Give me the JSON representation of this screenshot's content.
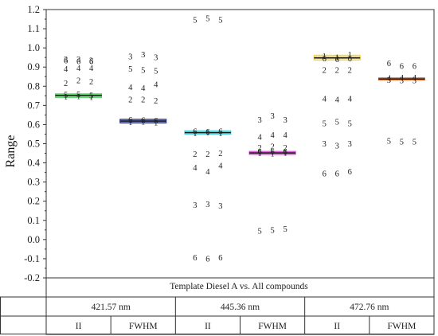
{
  "chart_data": {
    "type": "scatter",
    "ylabel": "Range",
    "ylim": [
      -0.2,
      1.2
    ],
    "yticks": [
      "1.2",
      "1.1",
      "1.0",
      "0.9",
      "0.8",
      "0.7",
      "0.6",
      "0.5",
      "0.4",
      "0.3",
      "0.2",
      "0.1",
      "0.0",
      "-0.1",
      "-0.2"
    ],
    "grid": false,
    "table": {
      "title": "Template Diesel A vs. All compounds",
      "wavelengths": [
        "421.57 nm",
        "445.36 nm",
        "472.76 nm"
      ],
      "measures": [
        "II",
        "FWHM",
        "II",
        "FWHM",
        "II",
        "FWHM"
      ]
    },
    "groups": [
      {
        "wavelength": "421.57 nm",
        "measure": "II",
        "bar": {
          "mean": 0.752,
          "low": 0.742,
          "high": 0.76,
          "color": "#2ecc40"
        },
        "points": [
          {
            "label": "6",
            "y": 0.935
          },
          {
            "label": "6",
            "y": 0.93
          },
          {
            "label": "6",
            "y": 0.93
          },
          {
            "label": "3",
            "y": 0.94
          },
          {
            "label": "3",
            "y": 0.94
          },
          {
            "label": "3",
            "y": 0.935
          },
          {
            "label": "4",
            "y": 0.89
          },
          {
            "label": "4",
            "y": 0.895
          },
          {
            "label": "4",
            "y": 0.895
          },
          {
            "label": "2",
            "y": 0.815
          },
          {
            "label": "2",
            "y": 0.83
          },
          {
            "label": "2",
            "y": 0.825
          },
          {
            "label": "5",
            "y": 0.755
          },
          {
            "label": "5",
            "y": 0.758
          },
          {
            "label": "5",
            "y": 0.752
          },
          {
            "label": "1",
            "y": 0.745
          },
          {
            "label": "1",
            "y": 0.748
          },
          {
            "label": "1",
            "y": 0.742
          }
        ]
      },
      {
        "wavelength": "421.57 nm",
        "measure": "FWHM",
        "bar": {
          "mean": 0.618,
          "low": 0.608,
          "high": 0.628,
          "color": "#1f2a8a"
        },
        "points": [
          {
            "label": "3",
            "y": 0.955
          },
          {
            "label": "3",
            "y": 0.965
          },
          {
            "label": "3",
            "y": 0.95
          },
          {
            "label": "5",
            "y": 0.89
          },
          {
            "label": "5",
            "y": 0.885
          },
          {
            "label": "5",
            "y": 0.88
          },
          {
            "label": "4",
            "y": 0.795
          },
          {
            "label": "4",
            "y": 0.79
          },
          {
            "label": "4",
            "y": 0.81
          },
          {
            "label": "2",
            "y": 0.73
          },
          {
            "label": "2",
            "y": 0.73
          },
          {
            "label": "2",
            "y": 0.725
          },
          {
            "label": "6",
            "y": 0.625
          },
          {
            "label": "6",
            "y": 0.622
          },
          {
            "label": "6",
            "y": 0.62
          },
          {
            "label": "1",
            "y": 0.612
          },
          {
            "label": "1",
            "y": 0.615
          },
          {
            "label": "1",
            "y": 0.61
          }
        ]
      },
      {
        "wavelength": "445.36 nm",
        "measure": "II",
        "bar": {
          "mean": 0.558,
          "low": 0.55,
          "high": 0.568,
          "color": "#3fd6e0"
        },
        "points": [
          {
            "label": "5",
            "y": 1.145
          },
          {
            "label": "5",
            "y": 1.155
          },
          {
            "label": "5",
            "y": 1.145
          },
          {
            "label": "6",
            "y": 0.565
          },
          {
            "label": "6",
            "y": 0.562
          },
          {
            "label": "6",
            "y": 0.565
          },
          {
            "label": "1",
            "y": 0.555
          },
          {
            "label": "1",
            "y": 0.558
          },
          {
            "label": "1",
            "y": 0.555
          },
          {
            "label": "2",
            "y": 0.445
          },
          {
            "label": "2",
            "y": 0.445
          },
          {
            "label": "2",
            "y": 0.45
          },
          {
            "label": "4",
            "y": 0.375
          },
          {
            "label": "4",
            "y": 0.355
          },
          {
            "label": "4",
            "y": 0.385
          },
          {
            "label": "3",
            "y": 0.18
          },
          {
            "label": "3",
            "y": 0.185
          },
          {
            "label": "3",
            "y": 0.175
          },
          {
            "label": "6",
            "y": -0.095
          },
          {
            "label": "6",
            "y": -0.1
          },
          {
            "label": "6",
            "y": -0.095
          }
        ]
      },
      {
        "wavelength": "445.36 nm",
        "measure": "FWHM",
        "bar": {
          "mean": 0.452,
          "low": 0.444,
          "high": 0.46,
          "color": "#d63bd6"
        },
        "points": [
          {
            "label": "3",
            "y": 0.625
          },
          {
            "label": "3",
            "y": 0.645
          },
          {
            "label": "3",
            "y": 0.625
          },
          {
            "label": "4",
            "y": 0.535
          },
          {
            "label": "4",
            "y": 0.545
          },
          {
            "label": "4",
            "y": 0.545
          },
          {
            "label": "2",
            "y": 0.48
          },
          {
            "label": "2",
            "y": 0.485
          },
          {
            "label": "2",
            "y": 0.48
          },
          {
            "label": "6",
            "y": 0.458
          },
          {
            "label": "6",
            "y": 0.46
          },
          {
            "label": "6",
            "y": 0.458
          },
          {
            "label": "1",
            "y": 0.45
          },
          {
            "label": "1",
            "y": 0.448
          },
          {
            "label": "1",
            "y": 0.452
          },
          {
            "label": "5",
            "y": 0.045
          },
          {
            "label": "5",
            "y": 0.05
          },
          {
            "label": "5",
            "y": 0.055
          }
        ]
      },
      {
        "wavelength": "472.76 nm",
        "measure": "II",
        "bar": {
          "mean": 0.948,
          "low": 0.936,
          "high": 0.962,
          "color": "#f3d43a"
        },
        "points": [
          {
            "label": "1",
            "y": 0.958
          },
          {
            "label": "1",
            "y": 0.95
          },
          {
            "label": "1",
            "y": 0.965
          },
          {
            "label": "6",
            "y": 0.945
          },
          {
            "label": "6",
            "y": 0.94
          },
          {
            "label": "6",
            "y": 0.945
          },
          {
            "label": "2",
            "y": 0.885
          },
          {
            "label": "2",
            "y": 0.885
          },
          {
            "label": "2",
            "y": 0.885
          },
          {
            "label": "4",
            "y": 0.735
          },
          {
            "label": "4",
            "y": 0.73
          },
          {
            "label": "4",
            "y": 0.735
          },
          {
            "label": "5",
            "y": 0.605
          },
          {
            "label": "5",
            "y": 0.615
          },
          {
            "label": "5",
            "y": 0.605
          },
          {
            "label": "3",
            "y": 0.5
          },
          {
            "label": "3",
            "y": 0.49
          },
          {
            "label": "3",
            "y": 0.5
          },
          {
            "label": "6",
            "y": 0.345
          },
          {
            "label": "6",
            "y": 0.345
          },
          {
            "label": "6",
            "y": 0.355
          }
        ]
      },
      {
        "wavelength": "472.76 nm",
        "measure": "FWHM",
        "bar": {
          "mean": 0.838,
          "low": 0.832,
          "high": 0.844,
          "color": "#e8732a"
        },
        "points": [
          {
            "label": "6",
            "y": 0.92
          },
          {
            "label": "6",
            "y": 0.905
          },
          {
            "label": "6",
            "y": 0.905
          },
          {
            "label": "4",
            "y": 0.842
          },
          {
            "label": "4",
            "y": 0.845
          },
          {
            "label": "4",
            "y": 0.845
          },
          {
            "label": "3",
            "y": 0.832
          },
          {
            "label": "3",
            "y": 0.83
          },
          {
            "label": "3",
            "y": 0.83
          },
          {
            "label": "5",
            "y": 0.515
          },
          {
            "label": "5",
            "y": 0.51
          },
          {
            "label": "5",
            "y": 0.51
          }
        ]
      }
    ]
  }
}
